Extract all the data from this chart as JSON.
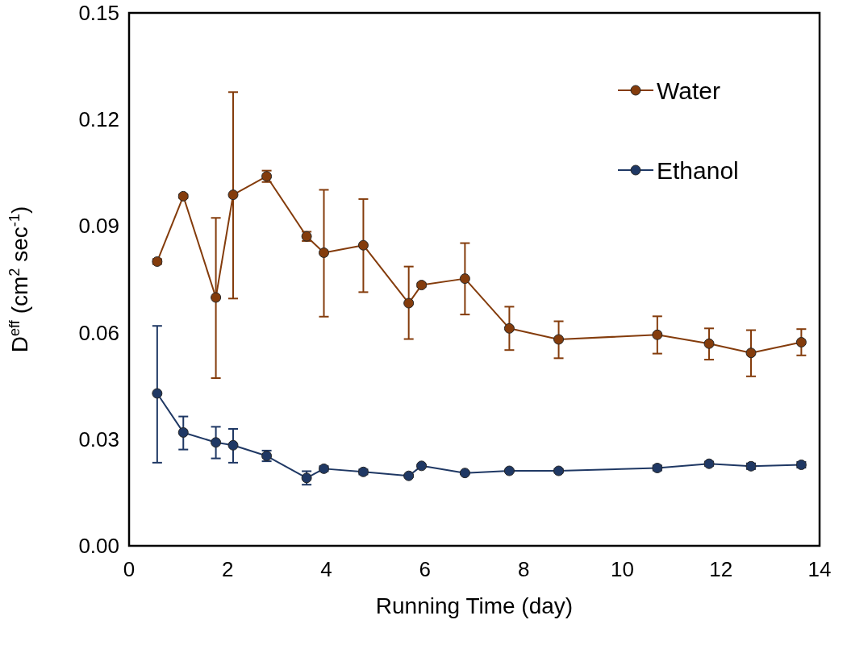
{
  "chart_data": {
    "type": "line",
    "xlabel": "Running Time (day)",
    "ylabel": "D$^{eff}$ (cm$^{2}$ sec$^{-1}$)",
    "xlim": [
      0,
      14
    ],
    "xticks": [
      0,
      2,
      4,
      6,
      8,
      10,
      12,
      14
    ],
    "ylim": [
      0,
      0.15
    ],
    "yticks": [
      {
        "value": 0,
        "label": "0.00"
      },
      {
        "value": 0.03,
        "label": "0.03"
      },
      {
        "value": 0.06,
        "label": "0.06"
      },
      {
        "value": 0.09,
        "label": "0.09"
      },
      {
        "value": 0.12,
        "label": "0.12"
      },
      {
        "value": 0.15,
        "label": "0.15"
      }
    ],
    "grid": false,
    "legend": "top right",
    "marker": "circle",
    "line_style": "solid",
    "x": [
      0.57,
      1.1,
      1.76,
      2.11,
      2.79,
      3.6,
      3.95,
      4.75,
      5.67,
      5.93,
      6.81,
      7.71,
      8.71,
      10.71,
      11.76,
      12.61,
      13.63
    ],
    "series": [
      {
        "name": "Water",
        "color": "#843c0c",
        "values": [
          0.08,
          0.0984,
          0.0699,
          0.0988,
          0.104,
          0.0871,
          0.0825,
          0.0846,
          0.0683,
          0.0734,
          0.0752,
          0.0612,
          0.0581,
          0.0594,
          0.0569,
          0.0543,
          0.0573
        ],
        "errors": [
          0.0007,
          0.0005,
          [
            0.0472,
            0.0923
          ],
          [
            0.0696,
            0.1277
          ],
          0.0016,
          0.0013,
          [
            0.0645,
            0.1002
          ],
          [
            0.0714,
            0.0976
          ],
          [
            0.0582,
            0.0786
          ],
          0.0005,
          [
            0.0651,
            0.0852
          ],
          [
            0.0551,
            0.0673
          ],
          [
            0.0528,
            0.0632
          ],
          [
            0.0541,
            0.0646
          ],
          [
            0.0524,
            0.0612
          ],
          [
            0.0477,
            0.0607
          ],
          [
            0.0536,
            0.061
          ]
        ]
      },
      {
        "name": "Ethanol",
        "color": "#1f3864",
        "values": [
          0.0429,
          0.0319,
          0.0291,
          0.0283,
          0.0253,
          0.0191,
          0.0217,
          0.0208,
          0.0197,
          0.0225,
          0.0205,
          0.0211,
          0.0211,
          0.0219,
          0.0231,
          0.0224,
          0.0228
        ],
        "errors": [
          [
            0.0234,
            0.0619
          ],
          [
            0.0271,
            0.0364
          ],
          [
            0.0246,
            0.0335
          ],
          [
            0.0234,
            0.0329
          ],
          0.0015,
          0.0019,
          0.0007,
          0.0007,
          0.0003,
          0.0003,
          0.0003,
          0.0003,
          0.0005,
          0.0007,
          0.0006,
          0.0008,
          0.0008
        ]
      }
    ]
  }
}
